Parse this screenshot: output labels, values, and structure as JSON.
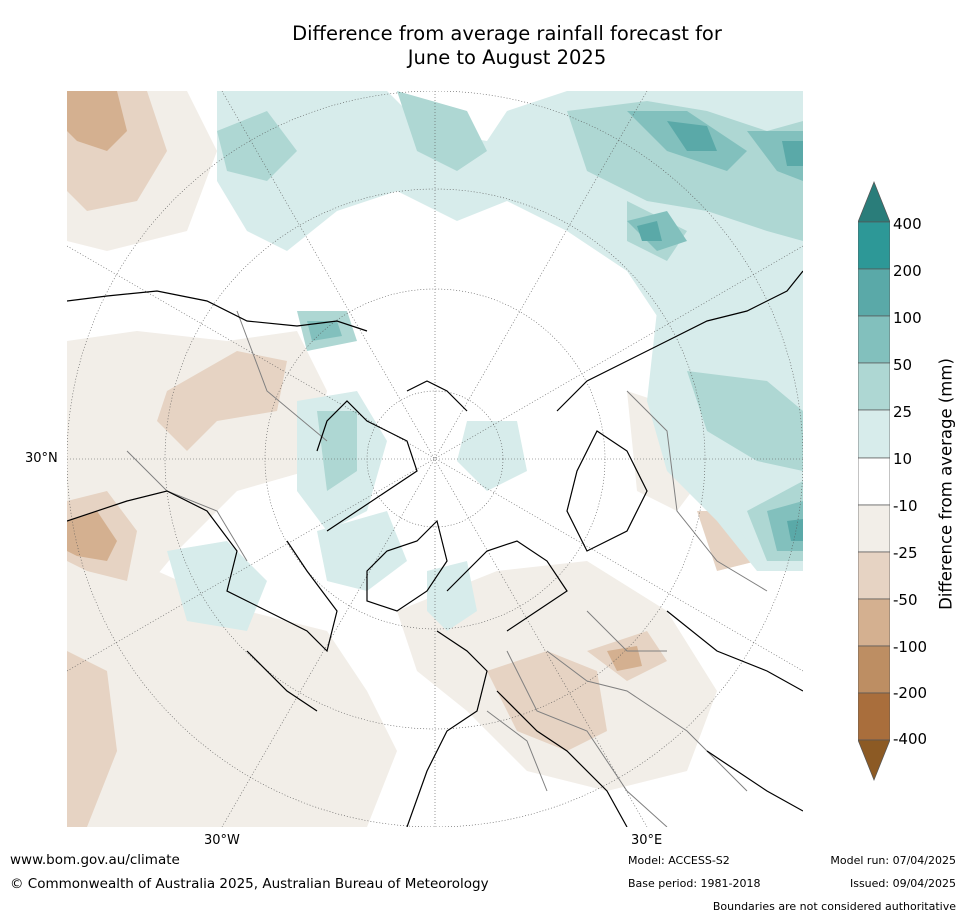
{
  "title_line1": "Difference from average rainfall forecast for",
  "title_line2": "June to August 2025",
  "map": {
    "lat_labels": [
      "30°N"
    ],
    "lon_labels": [
      "30°W",
      "30°E"
    ],
    "colors": {
      "ocean_bg": "#ffffff",
      "coast": "#000000",
      "border": "#808080",
      "grid": "#555555"
    }
  },
  "legend": {
    "title": "Difference from average (mm)",
    "labels": [
      "400",
      "200",
      "100",
      "50",
      "25",
      "10",
      "-10",
      "-25",
      "-50",
      "-100",
      "-200",
      "-400"
    ],
    "colors": [
      "#2a7d7a",
      "#2d9897",
      "#5aa9a8",
      "#82c0bd",
      "#aed7d3",
      "#d7eceb",
      "#ffffff",
      "#f2eee8",
      "#e6d3c3",
      "#d4b090",
      "#bd8e63",
      "#a96e3c",
      "#8c5a24"
    ]
  },
  "footer": {
    "website": "www.bom.gov.au/climate",
    "copyright": "© Commonwealth of Australia 2025, Australian Bureau of Meteorology",
    "model": "Model: ACCESS-S2",
    "base_period": "Base period: 1981-2018",
    "model_run": "Model run: 07/04/2025",
    "issued": "Issued: 09/04/2025",
    "disclaimer": "Boundaries are not considered authoritative"
  }
}
